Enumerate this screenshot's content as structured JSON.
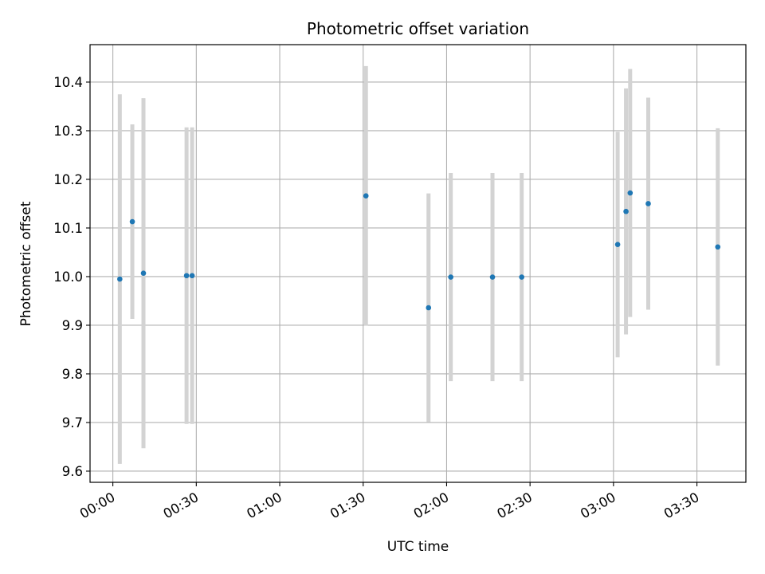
{
  "chart_data": {
    "type": "scatter",
    "title": "Photometric offset variation",
    "xlabel": "UTC time",
    "ylabel": "Photometric offset",
    "x_ticks": [
      "00:00",
      "00:30",
      "01:00",
      "01:30",
      "02:00",
      "02:30",
      "03:00",
      "03:30"
    ],
    "x_tick_minutes": [
      0,
      30,
      60,
      90,
      120,
      150,
      180,
      210
    ],
    "y_ticks": [
      "9.6",
      "9.7",
      "9.8",
      "9.9",
      "10.0",
      "10.1",
      "10.2",
      "10.3",
      "10.4"
    ],
    "xlim_minutes": [
      -8.2,
      227.6
    ],
    "ylim": [
      9.577,
      10.477
    ],
    "grid": true,
    "point_color": "#1f77b4",
    "errorbar_color": "#d3d3d3",
    "points": [
      {
        "t": "00:02:30",
        "minutes": 2.5,
        "y": 9.995,
        "err": 0.38
      },
      {
        "t": "00:07:00",
        "minutes": 7.0,
        "y": 10.113,
        "err": 0.2
      },
      {
        "t": "00:11:00",
        "minutes": 11.0,
        "y": 10.007,
        "err": 0.36
      },
      {
        "t": "00:26:30",
        "minutes": 26.5,
        "y": 10.002,
        "err": 0.305
      },
      {
        "t": "00:28:30",
        "minutes": 28.5,
        "y": 10.002,
        "err": 0.305
      },
      {
        "t": "01:31:00",
        "minutes": 91.0,
        "y": 10.166,
        "err": 0.267
      },
      {
        "t": "01:53:30",
        "minutes": 113.5,
        "y": 9.936,
        "err": 0.235
      },
      {
        "t": "02:01:30",
        "minutes": 121.5,
        "y": 9.999,
        "err": 0.214
      },
      {
        "t": "02:16:30",
        "minutes": 136.5,
        "y": 9.999,
        "err": 0.214
      },
      {
        "t": "02:27:00",
        "minutes": 147.0,
        "y": 9.999,
        "err": 0.214
      },
      {
        "t": "03:01:30",
        "minutes": 181.5,
        "y": 10.066,
        "err": 0.232
      },
      {
        "t": "03:04:30",
        "minutes": 184.5,
        "y": 10.134,
        "err": 0.253
      },
      {
        "t": "03:06:00",
        "minutes": 186.0,
        "y": 10.172,
        "err": 0.255
      },
      {
        "t": "03:12:30",
        "minutes": 192.5,
        "y": 10.15,
        "err": 0.218
      },
      {
        "t": "03:37:30",
        "minutes": 217.5,
        "y": 10.061,
        "err": 0.244
      }
    ]
  }
}
